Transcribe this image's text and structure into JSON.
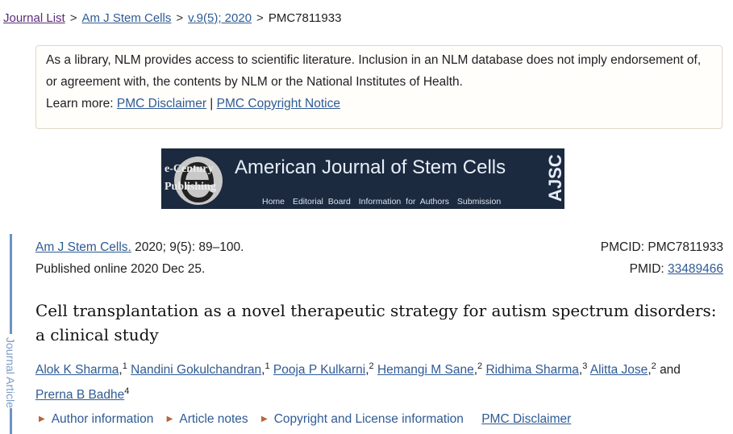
{
  "breadcrumb": [
    "Journal List",
    "Am J Stem Cells",
    "v.9(5); 2020",
    "PMC7811933"
  ],
  "notice": {
    "text": "As a library, NLM provides access to scientific literature. Inclusion in an NLM database does not imply endorsement of, or agreement with, the contents by NLM or the National Institutes of Health.",
    "learn_more": "Learn more:",
    "link1": "PMC Disclaimer",
    "sep": "|",
    "link2": "PMC Copyright Notice"
  },
  "banner": {
    "logo_text1": "e-Century",
    "logo_text2": "Publishing",
    "title": "American Journal of Stem Cells",
    "abbr": "AJSC",
    "nav": [
      "Home",
      "Editorial Board",
      "Information for Authors",
      "Submission"
    ]
  },
  "sidebar_label": "Journal Article",
  "citation": {
    "journal": "Am J Stem Cells.",
    "details": " 2020; 9(5): 89–100.",
    "published": "Published online 2020 Dec 25."
  },
  "ids": {
    "pmcid": "PMCID: PMC7811933",
    "pmid_label": "PMID: ",
    "pmid": "33489466"
  },
  "title": "Cell transplantation as a novel therapeutic strategy for autism spectrum disorders: a clinical study",
  "authors": [
    {
      "name": "Alok K Sharma",
      "sup": "1"
    },
    {
      "name": "Nandini Gokulchandran",
      "sup": "1"
    },
    {
      "name": "Pooja P Kulkarni",
      "sup": "2"
    },
    {
      "name": "Hemangi M Sane",
      "sup": "2"
    },
    {
      "name": "Ridhima Sharma",
      "sup": "3"
    },
    {
      "name": "Alitta Jose",
      "sup": "2"
    },
    {
      "name": "Prerna B Badhe",
      "sup": "4"
    }
  ],
  "and": "and",
  "meta": {
    "author_info": "Author information",
    "article_notes": "Article notes",
    "copyright": "Copyright and License information",
    "disclaimer": "PMC Disclaimer"
  }
}
